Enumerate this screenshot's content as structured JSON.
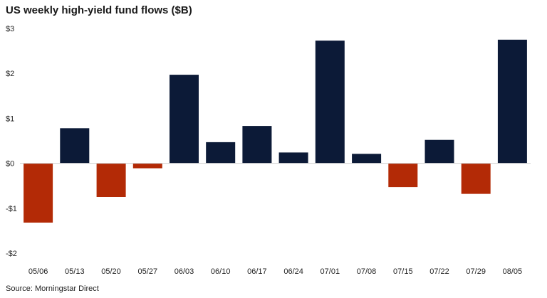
{
  "title": "US weekly high-yield fund flows ($B)",
  "source": "Source: Morningstar Direct",
  "colors": {
    "positive": "#0c1a37",
    "negative": "#b32a06",
    "zero_line": "#cfcfcf"
  },
  "chart_data": {
    "type": "bar",
    "title": "US weekly high-yield fund flows ($B)",
    "xlabel": "",
    "ylabel": "",
    "categories": [
      "05/06",
      "05/13",
      "05/20",
      "05/27",
      "06/03",
      "06/10",
      "06/17",
      "06/24",
      "07/01",
      "07/08",
      "07/15",
      "07/22",
      "07/29",
      "08/05"
    ],
    "values": [
      -1.32,
      0.78,
      -0.75,
      -0.11,
      1.97,
      0.47,
      0.83,
      0.24,
      2.73,
      0.21,
      -0.53,
      0.52,
      -0.68,
      2.75
    ],
    "ylim": [
      -2,
      3
    ],
    "yticks": [
      3,
      2,
      1,
      0,
      -1,
      -2
    ],
    "ytick_labels": [
      "$3",
      "$2",
      "$1",
      "$0",
      "-$1",
      "-$2"
    ],
    "grid": false,
    "legend": "none"
  }
}
